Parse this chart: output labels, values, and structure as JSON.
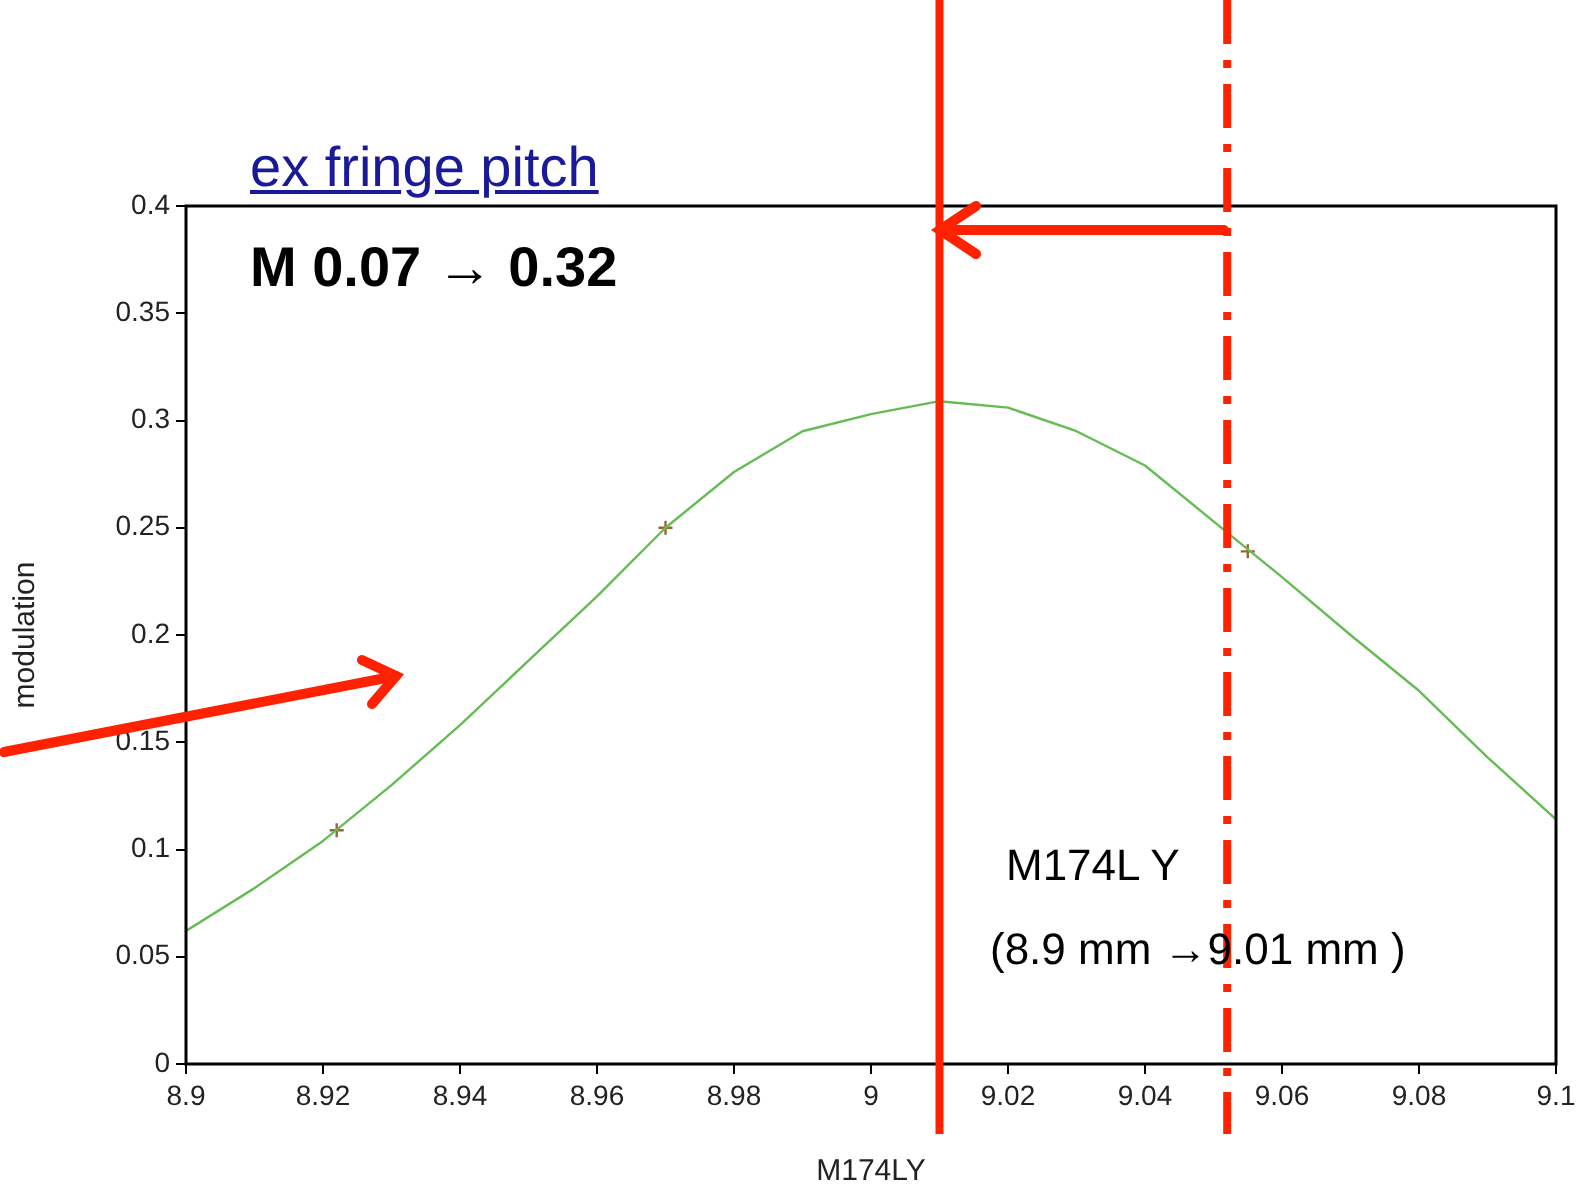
{
  "chart_data": {
    "type": "line",
    "xlabel": "M174LY",
    "ylabel": "modulation",
    "xlim": [
      8.9,
      9.1
    ],
    "xticks": [
      8.9,
      8.92,
      8.94,
      8.96,
      8.98,
      9,
      9.02,
      9.04,
      9.06,
      9.08,
      9.1
    ],
    "ylim": [
      0,
      0.4
    ],
    "yticks": [
      0,
      0.05,
      0.1,
      0.15,
      0.2,
      0.25,
      0.3,
      0.35,
      0.4
    ],
    "grid": false,
    "legend": false,
    "series": [
      {
        "color": "#66bb55",
        "marker": "none",
        "x": [
          8.9,
          8.91,
          8.92,
          8.93,
          8.94,
          8.95,
          8.96,
          8.97,
          8.98,
          8.99,
          9,
          9.01,
          9.02,
          9.03,
          9.04,
          9.05,
          9.06,
          9.07,
          9.08,
          9.09,
          9.1
        ],
        "values": [
          0.062,
          0.082,
          0.104,
          0.13,
          0.158,
          0.188,
          0.218,
          0.25,
          0.276,
          0.295,
          0.303,
          0.309,
          0.306,
          0.295,
          0.279,
          0.253,
          0.227,
          0.2,
          0.174,
          0.143,
          0.114
        ]
      },
      {
        "type": "scatter",
        "color": "#996633",
        "marker": "cross",
        "x": [
          8.922,
          8.97,
          9.055
        ],
        "values": [
          0.109,
          0.25,
          0.239
        ]
      }
    ],
    "ref_lines": [
      {
        "axis": "x",
        "value": 9.01,
        "color": "#ff2200",
        "line_style": "solid"
      },
      {
        "axis": "x",
        "value": 9.052,
        "color": "#ff2200",
        "line_style": "dashed"
      }
    ],
    "annotations": [
      "ex  fringe pitch",
      "M  0.07 → 0.32",
      "M174L Y",
      "(8.9 mm →9.01 mm )"
    ]
  }
}
